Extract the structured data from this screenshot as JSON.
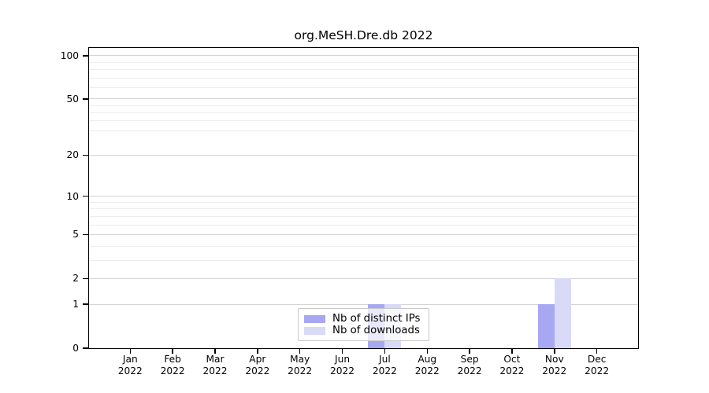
{
  "chart_data": {
    "type": "bar",
    "title": "org.MeSH.Dre.db 2022",
    "categories": [
      "Jan 2022",
      "Feb 2022",
      "Mar 2022",
      "Apr 2022",
      "May 2022",
      "Jun 2022",
      "Jul 2022",
      "Aug 2022",
      "Sep 2022",
      "Oct 2022",
      "Nov 2022",
      "Dec 2022"
    ],
    "x_labels": [
      {
        "month": "Jan",
        "year": "2022"
      },
      {
        "month": "Feb",
        "year": "2022"
      },
      {
        "month": "Mar",
        "year": "2022"
      },
      {
        "month": "Apr",
        "year": "2022"
      },
      {
        "month": "May",
        "year": "2022"
      },
      {
        "month": "Jun",
        "year": "2022"
      },
      {
        "month": "Jul",
        "year": "2022"
      },
      {
        "month": "Aug",
        "year": "2022"
      },
      {
        "month": "Sep",
        "year": "2022"
      },
      {
        "month": "Oct",
        "year": "2022"
      },
      {
        "month": "Nov",
        "year": "2022"
      },
      {
        "month": "Dec",
        "year": "2022"
      }
    ],
    "series": [
      {
        "name": "Nb of distinct IPs",
        "color": "#a8a8f2",
        "values": [
          0,
          0,
          0,
          0,
          0,
          0,
          1,
          0,
          0,
          0,
          1,
          0
        ]
      },
      {
        "name": "Nb of downloads",
        "color": "#d9d9f8",
        "values": [
          0,
          0,
          0,
          0,
          0,
          0,
          1,
          0,
          0,
          0,
          2,
          0
        ]
      }
    ],
    "y_axis": {
      "scale": "log1p",
      "tick_values": [
        0,
        1,
        2,
        5,
        10,
        20,
        50,
        100
      ],
      "tick_labels": [
        "0",
        "1",
        "2",
        "5",
        "10",
        "20",
        "50",
        "100"
      ],
      "minor_gridline_values": [
        3,
        4,
        6,
        7,
        8,
        9,
        30,
        35,
        40,
        45,
        60,
        70,
        80,
        90
      ],
      "ylim": [
        0,
        112
      ]
    },
    "xlabel": "",
    "ylabel": "",
    "grid": true,
    "legend": {
      "position": "inside-bottom-center",
      "entries": [
        {
          "label": "Nb of distinct IPs",
          "color": "#a8a8f2"
        },
        {
          "label": "Nb of downloads",
          "color": "#d9d9f8"
        }
      ]
    },
    "colors": {
      "axis": "#000000",
      "major_grid": "#d4d4d4",
      "minor_grid": "#ededed",
      "legend_border": "#c8c8c8",
      "background": "#ffffff"
    }
  }
}
